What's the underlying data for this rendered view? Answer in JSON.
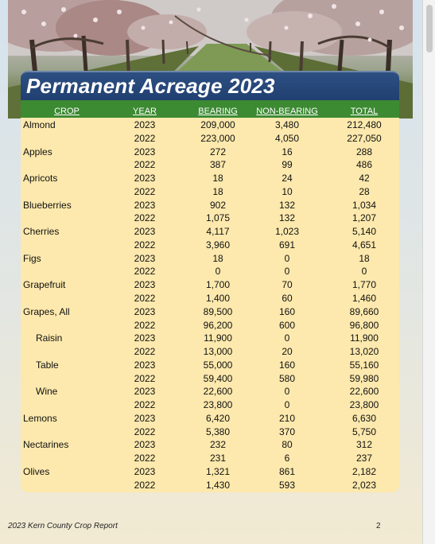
{
  "title": "Permanent Acreage 2023",
  "headers": {
    "crop": "CROP",
    "year": "YEAR",
    "bearing": "BEARING",
    "non_bearing": "NON-BEARING",
    "total": "TOTAL"
  },
  "rows": [
    {
      "crop": "Almond",
      "year": "2023",
      "bearing": "209,000",
      "non_bearing": "3,480",
      "total": "212,480"
    },
    {
      "crop": "",
      "year": "2022",
      "bearing": "223,000",
      "non_bearing": "4,050",
      "total": "227,050"
    },
    {
      "crop": "Apples",
      "year": "2023",
      "bearing": "272",
      "non_bearing": "16",
      "total": "288"
    },
    {
      "crop": "",
      "year": "2022",
      "bearing": "387",
      "non_bearing": "99",
      "total": "486"
    },
    {
      "crop": "Apricots",
      "year": "2023",
      "bearing": "18",
      "non_bearing": "24",
      "total": "42"
    },
    {
      "crop": "",
      "year": "2022",
      "bearing": "18",
      "non_bearing": "10",
      "total": "28"
    },
    {
      "crop": "Blueberries",
      "year": "2023",
      "bearing": "902",
      "non_bearing": "132",
      "total": "1,034"
    },
    {
      "crop": "",
      "year": "2022",
      "bearing": "1,075",
      "non_bearing": "132",
      "total": "1,207"
    },
    {
      "crop": "Cherries",
      "year": "2023",
      "bearing": "4,117",
      "non_bearing": "1,023",
      "total": "5,140"
    },
    {
      "crop": "",
      "year": "2022",
      "bearing": "3,960",
      "non_bearing": "691",
      "total": "4,651"
    },
    {
      "crop": "Figs",
      "year": "2023",
      "bearing": "18",
      "non_bearing": "0",
      "total": "18"
    },
    {
      "crop": "",
      "year": "2022",
      "bearing": "0",
      "non_bearing": "0",
      "total": "0"
    },
    {
      "crop": "Grapefruit",
      "year": "2023",
      "bearing": "1,700",
      "non_bearing": "70",
      "total": "1,770"
    },
    {
      "crop": "",
      "year": "2022",
      "bearing": "1,400",
      "non_bearing": "60",
      "total": "1,460"
    },
    {
      "crop": "Grapes, All",
      "year": "2023",
      "bearing": "89,500",
      "non_bearing": "160",
      "total": "89,660"
    },
    {
      "crop": "",
      "year": "2022",
      "bearing": "96,200",
      "non_bearing": "600",
      "total": "96,800"
    },
    {
      "crop": "Raisin",
      "sub": true,
      "year": "2023",
      "bearing": "11,900",
      "non_bearing": "0",
      "total": "11,900"
    },
    {
      "crop": "",
      "year": "2022",
      "bearing": "13,000",
      "non_bearing": "20",
      "total": "13,020"
    },
    {
      "crop": "Table",
      "sub": true,
      "year": "2023",
      "bearing": "55,000",
      "non_bearing": "160",
      "total": "55,160"
    },
    {
      "crop": "",
      "year": "2022",
      "bearing": "59,400",
      "non_bearing": "580",
      "total": "59,980"
    },
    {
      "crop": "Wine",
      "sub": true,
      "year": "2023",
      "bearing": "22,600",
      "non_bearing": "0",
      "total": "22,600"
    },
    {
      "crop": "",
      "year": "2022",
      "bearing": "23,800",
      "non_bearing": "0",
      "total": "23,800"
    },
    {
      "crop": "Lemons",
      "year": "2023",
      "bearing": "6,420",
      "non_bearing": "210",
      "total": "6,630"
    },
    {
      "crop": "",
      "year": "2022",
      "bearing": "5,380",
      "non_bearing": "370",
      "total": "5,750"
    },
    {
      "crop": "Nectarines",
      "year": "2023",
      "bearing": "232",
      "non_bearing": "80",
      "total": "312"
    },
    {
      "crop": "",
      "year": "2022",
      "bearing": "231",
      "non_bearing": "6",
      "total": "237"
    },
    {
      "crop": "Olives",
      "year": "2023",
      "bearing": "1,321",
      "non_bearing": "861",
      "total": "2,182"
    },
    {
      "crop": "",
      "year": "2022",
      "bearing": "1,430",
      "non_bearing": "593",
      "total": "2,023"
    }
  ],
  "footer": {
    "left": "2023 Kern County Crop Report",
    "page": "2"
  },
  "colors": {
    "banner": "#203f70",
    "header": "#3c8a32",
    "table_bg": "#fde9ad"
  }
}
